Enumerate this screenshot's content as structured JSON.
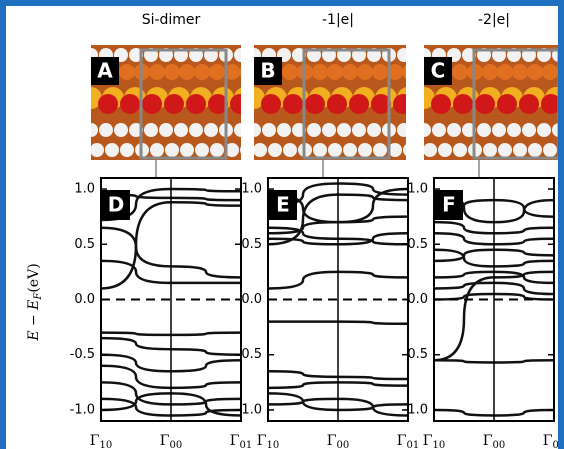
{
  "figure": {
    "y_axis_label": {
      "main": "E − E",
      "sub": "F",
      "unit": "(eV)"
    },
    "yticks": [
      {
        "value": 1,
        "label": "1.0"
      },
      {
        "value": 0.5,
        "label": "0.5"
      },
      {
        "value": 0,
        "label": "0.0"
      },
      {
        "value": -0.5,
        "label": "-0.5"
      },
      {
        "value": -1,
        "label": "-1.0"
      }
    ],
    "ylim": [
      -1.1,
      1.1
    ],
    "kpoints": [
      {
        "symbol": "Γ",
        "sub": "10"
      },
      {
        "symbol": "Γ",
        "sub": "00"
      },
      {
        "symbol": "Γ",
        "sub": "01"
      }
    ],
    "panels": [
      {
        "title": "Si-dimer",
        "image_letter": "A",
        "band_letter": "D"
      },
      {
        "title": "-1|e|",
        "image_letter": "B",
        "band_letter": "E"
      },
      {
        "title": "-2|e|",
        "image_letter": "C",
        "band_letter": "F"
      }
    ]
  }
}
